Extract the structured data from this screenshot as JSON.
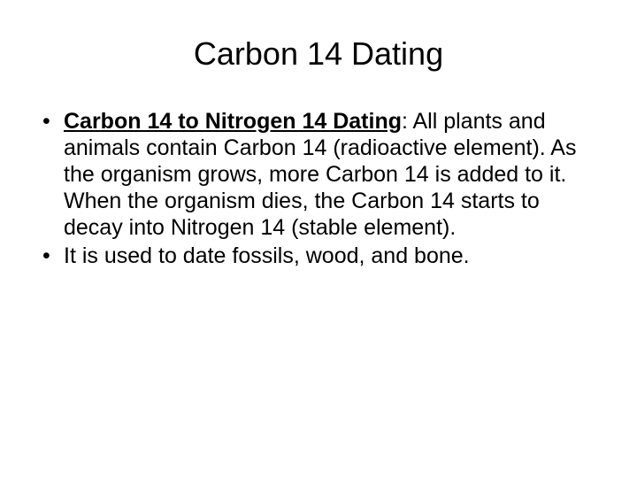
{
  "title": "Carbon 14 Dating",
  "bullets": [
    {
      "lead": "Carbon 14 to Nitrogen 14 Dating",
      "rest": ": All plants and animals contain Carbon 14 (radioactive element).  As the organism grows, more Carbon 14 is added to it. When the organism dies, the Carbon 14 starts to decay into Nitrogen 14 (stable element)."
    },
    {
      "rest": "It is used to date fossils, wood, and bone."
    }
  ],
  "colors": {
    "background": "#ffffff",
    "text": "#000000"
  },
  "fonts": {
    "title_size": 36,
    "body_size": 25,
    "family": "Arial"
  }
}
